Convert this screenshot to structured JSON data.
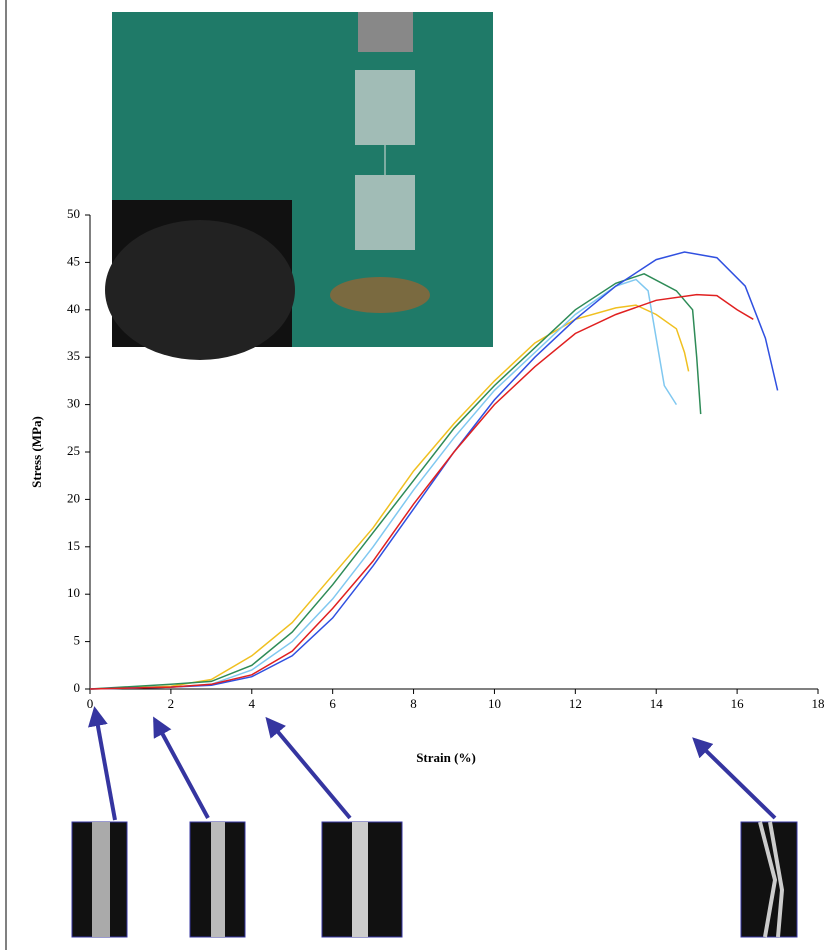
{
  "chart_data": {
    "type": "line",
    "xlabel": "Strain (%)",
    "ylabel": "Stress (MPa)",
    "xlim": [
      0,
      18
    ],
    "xticks": [
      0,
      2,
      4,
      6,
      8,
      10,
      12,
      14,
      16,
      18
    ],
    "ylim": [
      0,
      50
    ],
    "yticks": [
      0,
      5,
      10,
      15,
      20,
      25,
      30,
      35,
      40,
      45,
      50
    ],
    "grid": false,
    "series": [
      {
        "color": "#f0c020",
        "x": [
          0,
          2,
          3,
          4,
          5,
          6,
          7,
          8,
          9,
          10,
          11,
          12,
          13,
          13.5,
          14,
          14.5,
          14.7,
          14.8
        ],
        "values": [
          0,
          0.3,
          1,
          3.5,
          7,
          12,
          17,
          23,
          28,
          32.5,
          36.5,
          39,
          40.2,
          40.5,
          39.5,
          38,
          35.5,
          33.5
        ]
      },
      {
        "color": "#80c8f0",
        "x": [
          0,
          2,
          3,
          4,
          5,
          6,
          7,
          8,
          9,
          10,
          11,
          12,
          13,
          13.5,
          13.8,
          14,
          14.2,
          14.5
        ],
        "values": [
          0,
          0.2,
          0.5,
          2,
          5,
          9.5,
          15,
          21,
          26.5,
          31.5,
          35.5,
          39.5,
          42.5,
          43.2,
          42,
          37,
          32,
          30
        ]
      },
      {
        "color": "#2e8b57",
        "x": [
          0,
          2,
          3,
          4,
          5,
          6,
          7,
          8,
          9,
          10,
          11,
          12,
          13,
          13.7,
          14.5,
          14.9,
          15,
          15.1
        ],
        "values": [
          0,
          0.5,
          0.8,
          2.5,
          6,
          11,
          16.5,
          22,
          27.5,
          32,
          36,
          40,
          42.8,
          43.8,
          42,
          40,
          35,
          29
        ]
      },
      {
        "color": "#3050e0",
        "x": [
          0,
          2,
          3,
          4,
          5,
          6,
          7,
          8,
          9,
          10,
          11,
          12,
          13,
          14,
          14.7,
          15.5,
          16.2,
          16.7,
          17
        ],
        "values": [
          0,
          0.2,
          0.4,
          1.3,
          3.5,
          7.5,
          13,
          19,
          25,
          30.5,
          35,
          39,
          42.5,
          45.3,
          46.1,
          45.5,
          42.5,
          37,
          31.5
        ]
      },
      {
        "color": "#e02020",
        "x": [
          0,
          2,
          3,
          4,
          5,
          6,
          7,
          8,
          9,
          10,
          11,
          12,
          13,
          14,
          15,
          15.5,
          16,
          16.4
        ],
        "values": [
          0,
          0.2,
          0.5,
          1.5,
          4,
          8.5,
          13.5,
          19.5,
          25,
          30,
          34,
          37.5,
          39.5,
          41,
          41.6,
          41.5,
          40,
          39
        ]
      }
    ]
  }
}
